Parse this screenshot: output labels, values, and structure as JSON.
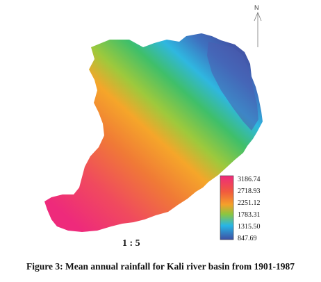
{
  "map": {
    "north_label": "N",
    "scale_label": "1 : 5"
  },
  "legend": {
    "labels": [
      "3186.74",
      "2718.93",
      "2251.12",
      "1783.31",
      "1315.50",
      "847.69"
    ],
    "colors": [
      "#ee2a7b",
      "#f5802a",
      "#8cc63f",
      "#27b6e6",
      "#3e4fa3"
    ]
  },
  "caption": "Figure 3: Mean annual rainfall for Kali river basin from 1901-1987"
}
